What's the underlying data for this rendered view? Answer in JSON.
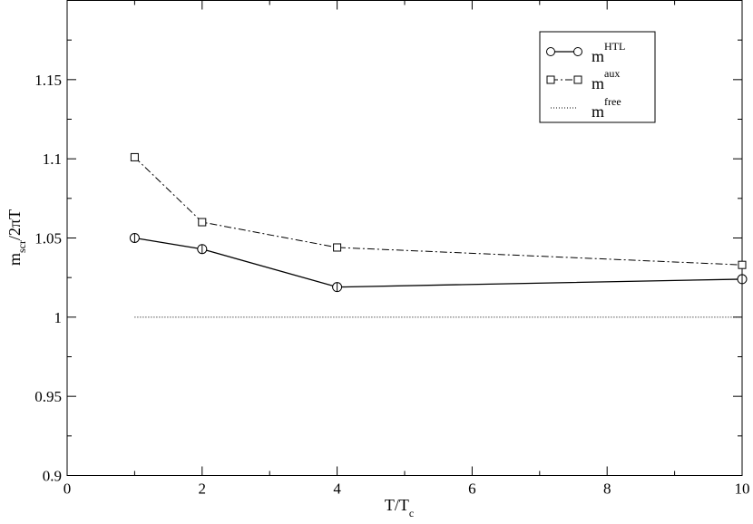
{
  "chart_data": {
    "type": "line",
    "xlabel": {
      "main": "T/T",
      "sub": "c"
    },
    "ylabel": {
      "main": "m",
      "sub": "scr",
      "rest": "/2πT"
    },
    "xlim": [
      0,
      10
    ],
    "ylim": [
      0.9,
      1.2
    ],
    "xticks": [
      0,
      2,
      4,
      6,
      8,
      10
    ],
    "xtick_labels": [
      "0",
      "2",
      "4",
      "6",
      "8",
      "10"
    ],
    "yticks": [
      0.9,
      0.95,
      1.0,
      1.05,
      1.1,
      1.15
    ],
    "ytick_labels": [
      "0.9",
      "0.95",
      "1",
      "1.05",
      "1.1",
      "1.15"
    ],
    "grid": false,
    "legend_position": "top-right",
    "series": [
      {
        "name": "m^HTL",
        "label_base": "m",
        "label_sup": "HTL",
        "line_style": "solid",
        "marker": "circle",
        "x": [
          1,
          2,
          4,
          10
        ],
        "y": [
          1.05,
          1.043,
          1.019,
          1.024
        ],
        "yerr": [
          0.003,
          0.003,
          0.003,
          0.003
        ]
      },
      {
        "name": "m^aux",
        "label_base": "m",
        "label_sup": "aux",
        "line_style": "dash-dot",
        "marker": "square",
        "x": [
          1,
          2,
          4,
          10
        ],
        "y": [
          1.101,
          1.06,
          1.044,
          1.033
        ]
      },
      {
        "name": "m^free",
        "label_base": "m",
        "label_sup": "free",
        "line_style": "dotted",
        "marker": "none",
        "x": [
          1,
          10
        ],
        "y": [
          1.0,
          1.0
        ]
      }
    ]
  }
}
